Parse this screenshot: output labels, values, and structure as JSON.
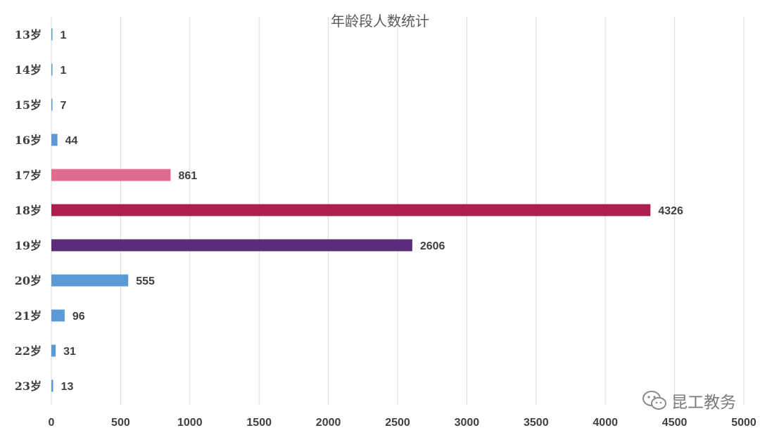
{
  "chart_data": {
    "type": "bar",
    "orientation": "horizontal",
    "title": "年龄段人数统计",
    "categories": [
      "13岁",
      "14岁",
      "15岁",
      "16岁",
      "17岁",
      "18岁",
      "19岁",
      "20岁",
      "21岁",
      "22岁",
      "23岁"
    ],
    "values": [
      1,
      1,
      7,
      44,
      861,
      4326,
      2606,
      555,
      96,
      31,
      13
    ],
    "colors": [
      "#5b9bd5",
      "#5b9bd5",
      "#5b9bd5",
      "#5b9bd5",
      "#e06b8f",
      "#ad1f4f",
      "#5b2c7a",
      "#5b9bd5",
      "#5b9bd5",
      "#5b9bd5",
      "#5b9bd5"
    ],
    "xlim": [
      0,
      5000
    ],
    "xticks": [
      "0",
      "500",
      "1000",
      "1500",
      "2000",
      "2500",
      "3000",
      "3500",
      "4000",
      "4500",
      "5000"
    ],
    "grid": true,
    "legend": "none"
  },
  "watermark": {
    "text": "昆工教务",
    "icon": "wechat-icon"
  }
}
